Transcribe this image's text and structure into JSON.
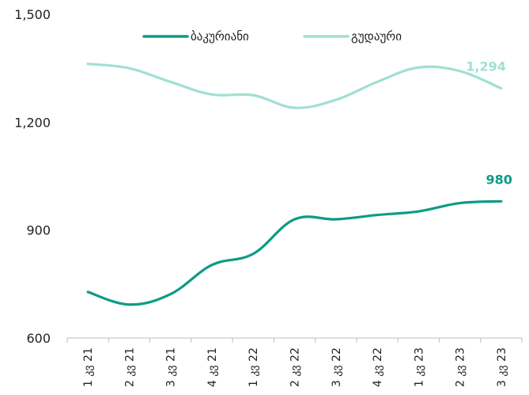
{
  "chart_data": {
    "type": "line",
    "categories": [
      "1 კვ 21",
      "2 კვ 21",
      "3 კვ 21",
      "4 კვ 21",
      "1 კვ 22",
      "2 კვ 22",
      "3 კვ 22",
      "4 კვ 22",
      "1 კვ 23",
      "2 კვ 23",
      "3 კვ 23"
    ],
    "series": [
      {
        "name": "ბაკურიანი",
        "color": "#0e9b85",
        "values": [
          728,
          693,
          722,
          803,
          834,
          930,
          930,
          942,
          952,
          975,
          980
        ],
        "last_label": "980"
      },
      {
        "name": "გუდაური",
        "color": "#9fe0d4",
        "values": [
          1362,
          1350,
          1312,
          1277,
          1275,
          1240,
          1262,
          1312,
          1352,
          1342,
          1294
        ],
        "last_label": "1,294"
      }
    ],
    "yticks": [
      600,
      900,
      1200,
      1500
    ],
    "ytick_labels": [
      "600",
      "900",
      "1,200",
      "1,500"
    ],
    "ylim": [
      600,
      1500
    ],
    "grid": false,
    "legend_position": "top"
  }
}
